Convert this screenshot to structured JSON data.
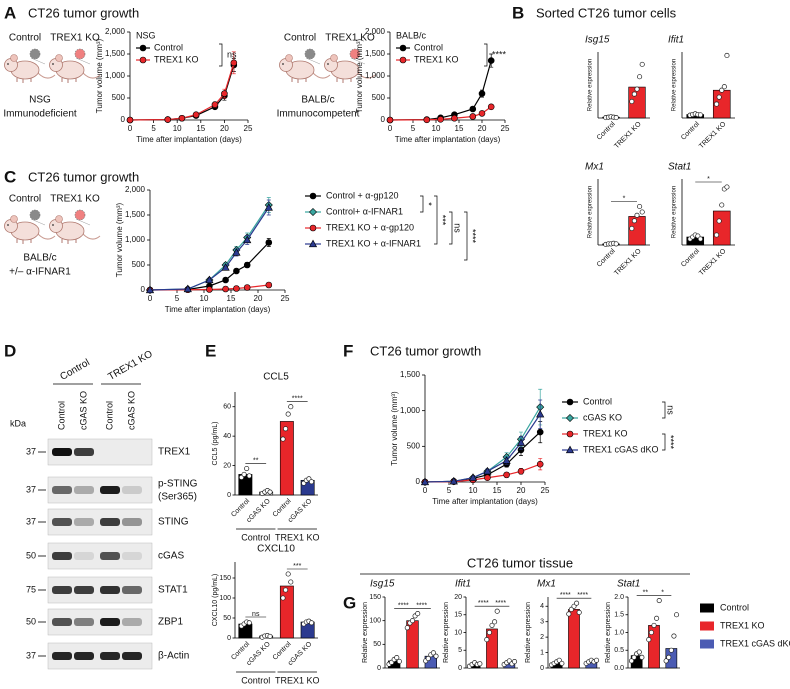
{
  "panels": [
    "A",
    "B",
    "C",
    "D",
    "E",
    "F",
    "G"
  ],
  "headings": [
    "CT26 tumor growth",
    "Sorted CT26 tumor cells",
    "CT26 tumor growth",
    "CT26 tumor tissue"
  ],
  "mice": [
    {
      "labels": [
        "Control",
        "TREX1 KO"
      ],
      "caption": [
        "NSG",
        "Immunodeficient"
      ]
    },
    {
      "labels": [
        "Control",
        "TREX1 KO"
      ],
      "caption": [
        "BALB/c",
        "Immunocompetent"
      ]
    },
    {
      "labels": [
        "Control",
        "TREX1 KO"
      ],
      "caption": [
        "BALB/c",
        "+/– α-IFNAR1"
      ]
    }
  ],
  "blot": {
    "groups": [
      "Control",
      "TREX1 KO"
    ],
    "lanes": [
      "Control",
      "cGAS KO",
      "Control",
      "cGAS KO"
    ],
    "kda_label": "kDa",
    "rows": [
      {
        "mw": 37,
        "protein": "TREX1"
      },
      {
        "mw": 37,
        "protein": "p-STING",
        "note": "(Ser365)"
      },
      {
        "mw": 37,
        "protein": "STING"
      },
      {
        "mw": 50,
        "protein": "cGAS"
      },
      {
        "mw": 75,
        "protein": "STAT1"
      },
      {
        "mw": 50,
        "protein": "ZBP1"
      },
      {
        "mw": 37,
        "protein": "β-Actin"
      }
    ]
  },
  "g_legend": [
    {
      "name": "Control",
      "color": "#000000"
    },
    {
      "name": "TREX1 KO",
      "color": "#e8262a"
    },
    {
      "name": "TREX1 cGAS dKO",
      "color": "#4b5bb3"
    }
  ],
  "chart_data": [
    {
      "type": "line",
      "legend_title": "NSG",
      "legend": "upper left",
      "x": [
        0,
        8,
        11,
        14,
        18,
        20,
        22
      ],
      "series": [
        {
          "name": "Control",
          "color": "#000000",
          "marker": "circle",
          "values": [
            0,
            10,
            40,
            100,
            300,
            550,
            1250
          ],
          "errors": [
            0,
            5,
            10,
            20,
            50,
            100,
            150
          ]
        },
        {
          "name": "TREX1 KO",
          "color": "#e8262a",
          "marker": "circle",
          "values": [
            0,
            10,
            40,
            120,
            350,
            600,
            1300
          ],
          "errors": [
            0,
            5,
            15,
            30,
            60,
            100,
            250
          ]
        }
      ],
      "xlim": [
        0,
        25
      ],
      "xticks": [
        0,
        5,
        10,
        15,
        20,
        25
      ],
      "ylim": [
        0,
        2000
      ],
      "yticks": [
        0,
        500,
        {
          "value": 1000,
          "label": "1,000"
        },
        {
          "value": 1500,
          "label": "1,500"
        },
        {
          "value": 2000,
          "label": "2,000"
        }
      ],
      "xlabel": "Time after implantation (days)",
      "ylabel": "Tumor volume (mm³)",
      "annotations": [
        "ns"
      ]
    },
    {
      "type": "line",
      "legend_title": "BALB/c",
      "legend": "upper left",
      "x": [
        0,
        8,
        11,
        14,
        18,
        20,
        22
      ],
      "series": [
        {
          "name": "Control",
          "color": "#000000",
          "marker": "circle",
          "values": [
            0,
            10,
            50,
            120,
            250,
            600,
            1350
          ],
          "errors": [
            0,
            5,
            10,
            20,
            40,
            80,
            150
          ]
        },
        {
          "name": "TREX1 KO",
          "color": "#e8262a",
          "marker": "circle",
          "values": [
            0,
            5,
            15,
            40,
            80,
            150,
            300
          ],
          "errors": [
            0,
            3,
            5,
            10,
            20,
            30,
            50
          ]
        }
      ],
      "xlim": [
        0,
        25
      ],
      "xticks": [
        0,
        5,
        10,
        15,
        20,
        25
      ],
      "ylim": [
        0,
        2000
      ],
      "yticks": [
        0,
        500,
        {
          "value": 1000,
          "label": "1,000"
        },
        {
          "value": 1500,
          "label": "1,500"
        },
        {
          "value": 2000,
          "label": "2,000"
        }
      ],
      "xlabel": "Time after implantation (days)",
      "ylabel": "Tumor volume (mm³)",
      "annotations": [
        "****"
      ]
    },
    {
      "type": "bar",
      "title": "Isg15",
      "ylabel": "Relative expression",
      "categories": [
        "Control",
        "TREX1 KO"
      ],
      "values": [
        2,
        75
      ],
      "colors": [
        "#000000",
        "#e8262a"
      ],
      "points": [
        [
          1,
          2,
          3,
          2,
          1
        ],
        [
          40,
          58,
          70,
          100,
          130
        ]
      ],
      "ylim": [
        0,
        160
      ]
    },
    {
      "type": "bar",
      "title": "Ifit1",
      "ylabel": "Relative expression",
      "categories": [
        "Control",
        "TREX1 KO"
      ],
      "values": [
        1,
        8
      ],
      "colors": [
        "#000000",
        "#e8262a"
      ],
      "points": [
        [
          0.8,
          1,
          1.2,
          1,
          0.9
        ],
        [
          4,
          6,
          8,
          9,
          18
        ]
      ],
      "ylim": [
        0,
        19
      ]
    },
    {
      "type": "bar",
      "title": "Mx1",
      "ylabel": "Relative expression",
      "categories": [
        "Control",
        "TREX1 KO"
      ],
      "values": [
        0.1,
        2.6
      ],
      "colors": [
        "#000000",
        "#e8262a"
      ],
      "points": [
        [
          0.05,
          0.1,
          0.1,
          0.15,
          0.1
        ],
        [
          1.5,
          2.2,
          2.7,
          3.5,
          3
        ]
      ],
      "ylim": [
        0,
        6
      ],
      "annotations": [
        "*"
      ]
    },
    {
      "type": "bar",
      "title": "Stat1",
      "ylabel": "Relative expression",
      "categories": [
        "Control",
        "TREX1 KO"
      ],
      "values": [
        0.4,
        1.7
      ],
      "colors": [
        "#000000",
        "#e8262a"
      ],
      "points": [
        [
          0.3,
          0.4,
          0.5,
          0.45,
          0.3
        ],
        [
          0.5,
          1.2,
          2,
          2.8,
          2.9
        ]
      ],
      "ylim": [
        0,
        3.3
      ],
      "annotations": [
        "*"
      ]
    },
    {
      "type": "line",
      "legend": "right",
      "x": [
        0,
        7,
        11,
        14,
        16,
        18,
        22
      ],
      "series": [
        {
          "name": "Control + α-gp120",
          "color": "#000000",
          "marker": "circle",
          "values": [
            0,
            10,
            80,
            200,
            380,
            500,
            950
          ],
          "errors": [
            0,
            5,
            15,
            30,
            40,
            50,
            80
          ]
        },
        {
          "name": "Control+ α-IFNAR1",
          "color": "#3aa6a0",
          "marker": "diamond",
          "values": [
            0,
            20,
            200,
            500,
            800,
            1050,
            1700
          ],
          "errors": [
            0,
            5,
            25,
            50,
            70,
            90,
            150
          ]
        },
        {
          "name": "TREX1 KO + α-gp120",
          "color": "#e8262a",
          "marker": "circle",
          "values": [
            0,
            5,
            10,
            20,
            30,
            50,
            100
          ],
          "errors": [
            0,
            2,
            4,
            6,
            8,
            10,
            20
          ]
        },
        {
          "name": "TREX1 KO + α-IFNAR1",
          "color": "#2b3a8f",
          "marker": "triangle",
          "values": [
            0,
            20,
            200,
            450,
            750,
            1000,
            1650
          ],
          "errors": [
            0,
            5,
            25,
            50,
            70,
            90,
            150
          ]
        }
      ],
      "xlim": [
        0,
        25
      ],
      "xticks": [
        0,
        5,
        10,
        15,
        20,
        25
      ],
      "ylim": [
        0,
        2000
      ],
      "yticks": [
        0,
        500,
        {
          "value": 1000,
          "label": "1,000"
        },
        {
          "value": 1500,
          "label": "1,500"
        },
        {
          "value": 2000,
          "label": "2,000"
        }
      ],
      "xlabel": "Time after implantation (days)",
      "ylabel": "Tumor volume (mm³)",
      "annotations": [
        "*",
        "***",
        "ns",
        "****"
      ]
    },
    {
      "type": "bar",
      "title": "CCL5",
      "ylabel": "CCL5 (pg/mL)",
      "categories": [
        "Control",
        "cGAS KO",
        "Control",
        "cGAS KO"
      ],
      "group_labels": [
        "Control",
        "TREX1 KO"
      ],
      "values": [
        14,
        2,
        50,
        10
      ],
      "colors": [
        "#000000",
        "#ffffff",
        "#e8262a",
        "#2b3a8f"
      ],
      "points": [
        [
          12,
          14,
          18,
          13
        ],
        [
          1,
          2,
          3,
          2
        ],
        [
          38,
          45,
          55,
          60
        ],
        [
          8,
          10,
          11,
          9
        ]
      ],
      "ylim": [
        0,
        70
      ],
      "yticks": [
        0,
        20,
        40,
        60
      ],
      "annotations": [
        "**",
        "****"
      ]
    },
    {
      "type": "bar",
      "title": "CXCL10",
      "ylabel": "CXCL10 (pg/mL)",
      "categories": [
        "Control",
        "cGAS KO",
        "Control",
        "cGAS KO"
      ],
      "group_labels": [
        "Control",
        "TREX1 KO"
      ],
      "values": [
        35,
        5,
        130,
        40
      ],
      "colors": [
        "#000000",
        "#ffffff",
        "#e8262a",
        "#2b3a8f"
      ],
      "points": [
        [
          30,
          35,
          40,
          38
        ],
        [
          2,
          5,
          6,
          4
        ],
        [
          100,
          120,
          160,
          140
        ],
        [
          35,
          40,
          42,
          38
        ]
      ],
      "ylim": [
        0,
        190
      ],
      "yticks": [
        0,
        50,
        100,
        150
      ],
      "annotations": [
        "ns",
        "***"
      ]
    },
    {
      "type": "line",
      "title": "CT26 tumor growth",
      "legend": "right",
      "x": [
        0,
        6,
        10,
        13,
        17,
        20,
        24
      ],
      "series": [
        {
          "name": "Control",
          "color": "#000000",
          "marker": "circle",
          "values": [
            0,
            10,
            50,
            100,
            250,
            450,
            700
          ],
          "errors": [
            0,
            5,
            10,
            20,
            40,
            80,
            150
          ]
        },
        {
          "name": "cGAS KO",
          "color": "#3aa6a0",
          "marker": "diamond",
          "values": [
            0,
            10,
            60,
            150,
            350,
            600,
            1050
          ],
          "errors": [
            0,
            5,
            15,
            30,
            60,
            100,
            250
          ]
        },
        {
          "name": "TREX1 KO",
          "color": "#e8262a",
          "marker": "circle",
          "values": [
            0,
            5,
            30,
            60,
            100,
            150,
            250
          ],
          "errors": [
            0,
            3,
            8,
            15,
            25,
            40,
            80
          ]
        },
        {
          "name": "TREX1 cGAS dKO",
          "color": "#2b3a8f",
          "marker": "triangle",
          "values": [
            0,
            10,
            60,
            150,
            300,
            550,
            950
          ],
          "errors": [
            0,
            5,
            15,
            30,
            50,
            90,
            200
          ]
        }
      ],
      "xlim": [
        0,
        25
      ],
      "xticks": [
        0,
        5,
        10,
        15,
        20,
        25
      ],
      "ylim": [
        0,
        1500
      ],
      "yticks": [
        0,
        500,
        {
          "value": 1000,
          "label": "1,000"
        },
        {
          "value": 1500,
          "label": "1,500"
        }
      ],
      "xlabel": "Time after implantation (days)",
      "ylabel": "Tumor volume (mm³)",
      "annotations": [
        "ns",
        "****"
      ]
    },
    {
      "type": "bar",
      "title": "Isg15",
      "ylabel": "Relative expression",
      "values": [
        15,
        100,
        25
      ],
      "points": [
        [
          8,
          12,
          18,
          22,
          14
        ],
        [
          85,
          95,
          100,
          110,
          115
        ],
        [
          15,
          20,
          28,
          32,
          25
        ]
      ],
      "ylim": [
        0,
        150
      ],
      "yticks": [
        0,
        50,
        100,
        150
      ],
      "annotations": [
        "****",
        "****"
      ]
    },
    {
      "type": "bar",
      "title": "Ifit1",
      "ylabel": "Relative expression",
      "values": [
        1,
        11,
        1.5
      ],
      "points": [
        [
          0.5,
          1,
          1.5,
          1,
          1.2
        ],
        [
          8,
          10,
          12,
          13,
          16
        ],
        [
          1,
          1.5,
          2,
          1.2,
          1.8
        ]
      ],
      "ylim": [
        0,
        20
      ],
      "yticks": [
        0,
        5,
        10,
        15,
        20
      ],
      "annotations": [
        "****",
        "****"
      ]
    },
    {
      "type": "bar",
      "title": "Mx1",
      "ylabel": "Relative expression",
      "values": [
        0.3,
        3.8,
        0.4
      ],
      "points": [
        [
          0.2,
          0.3,
          0.4,
          0.5,
          0.3
        ],
        [
          3.5,
          3.8,
          4,
          4.2,
          3.6
        ],
        [
          0.3,
          0.4,
          0.5,
          0.4,
          0.5
        ]
      ],
      "ylim": [
        0,
        4.6
      ],
      "yticks": [
        0,
        1,
        2,
        3,
        4
      ],
      "annotations": [
        "****",
        "****"
      ]
    },
    {
      "type": "bar",
      "title": "Stat1",
      "ylabel": "Relative expression",
      "values": [
        0.35,
        1.2,
        0.55
      ],
      "points": [
        [
          0.2,
          0.3,
          0.4,
          0.45,
          0.3
        ],
        [
          0.8,
          1,
          1.2,
          1.4,
          1.9
        ],
        [
          0.2,
          0.3,
          0.5,
          0.9,
          1.5
        ]
      ],
      "ylim": [
        0,
        2
      ],
      "yticks": [
        {
          "value": 0,
          "label": "0.0"
        },
        0.5,
        {
          "value": 1,
          "label": "1.0"
        },
        1.5,
        {
          "value": 2,
          "label": "2.0"
        }
      ],
      "annotations": [
        "**",
        "*"
      ]
    }
  ]
}
